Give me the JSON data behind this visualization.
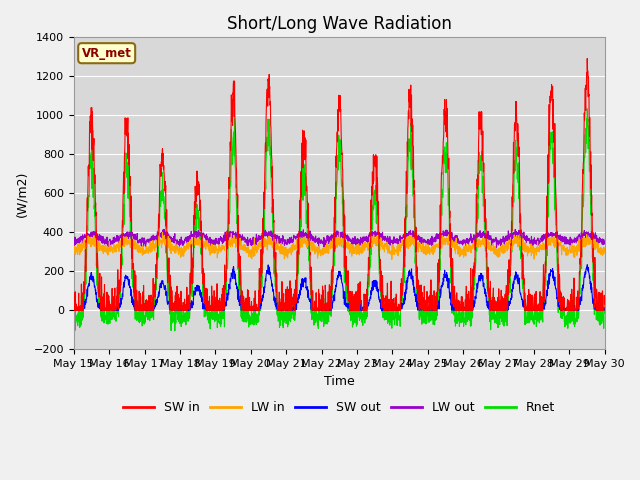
{
  "title": "Short/Long Wave Radiation",
  "xlabel": "Time",
  "ylabel": "(W/m2)",
  "ylim": [
    -200,
    1400
  ],
  "annotation": "VR_met",
  "colors": {
    "SW_in": "#ff0000",
    "LW_in": "#ffa500",
    "SW_out": "#0000ff",
    "LW_out": "#9900cc",
    "Rnet": "#00dd00"
  },
  "legend_labels": [
    "SW in",
    "LW in",
    "SW out",
    "LW out",
    "Rnet"
  ],
  "bg_color": "#d8d8d8",
  "grid_color": "#ffffff",
  "xtick_labels": [
    "May 15",
    "May 16",
    "May 17",
    "May 18",
    "May 19",
    "May 20",
    "May 21",
    "May 22",
    "May 23",
    "May 24",
    "May 25",
    "May 26",
    "May 27",
    "May 28",
    "May 29",
    "May 30"
  ],
  "title_fontsize": 12,
  "axis_fontsize": 9,
  "tick_fontsize": 8
}
